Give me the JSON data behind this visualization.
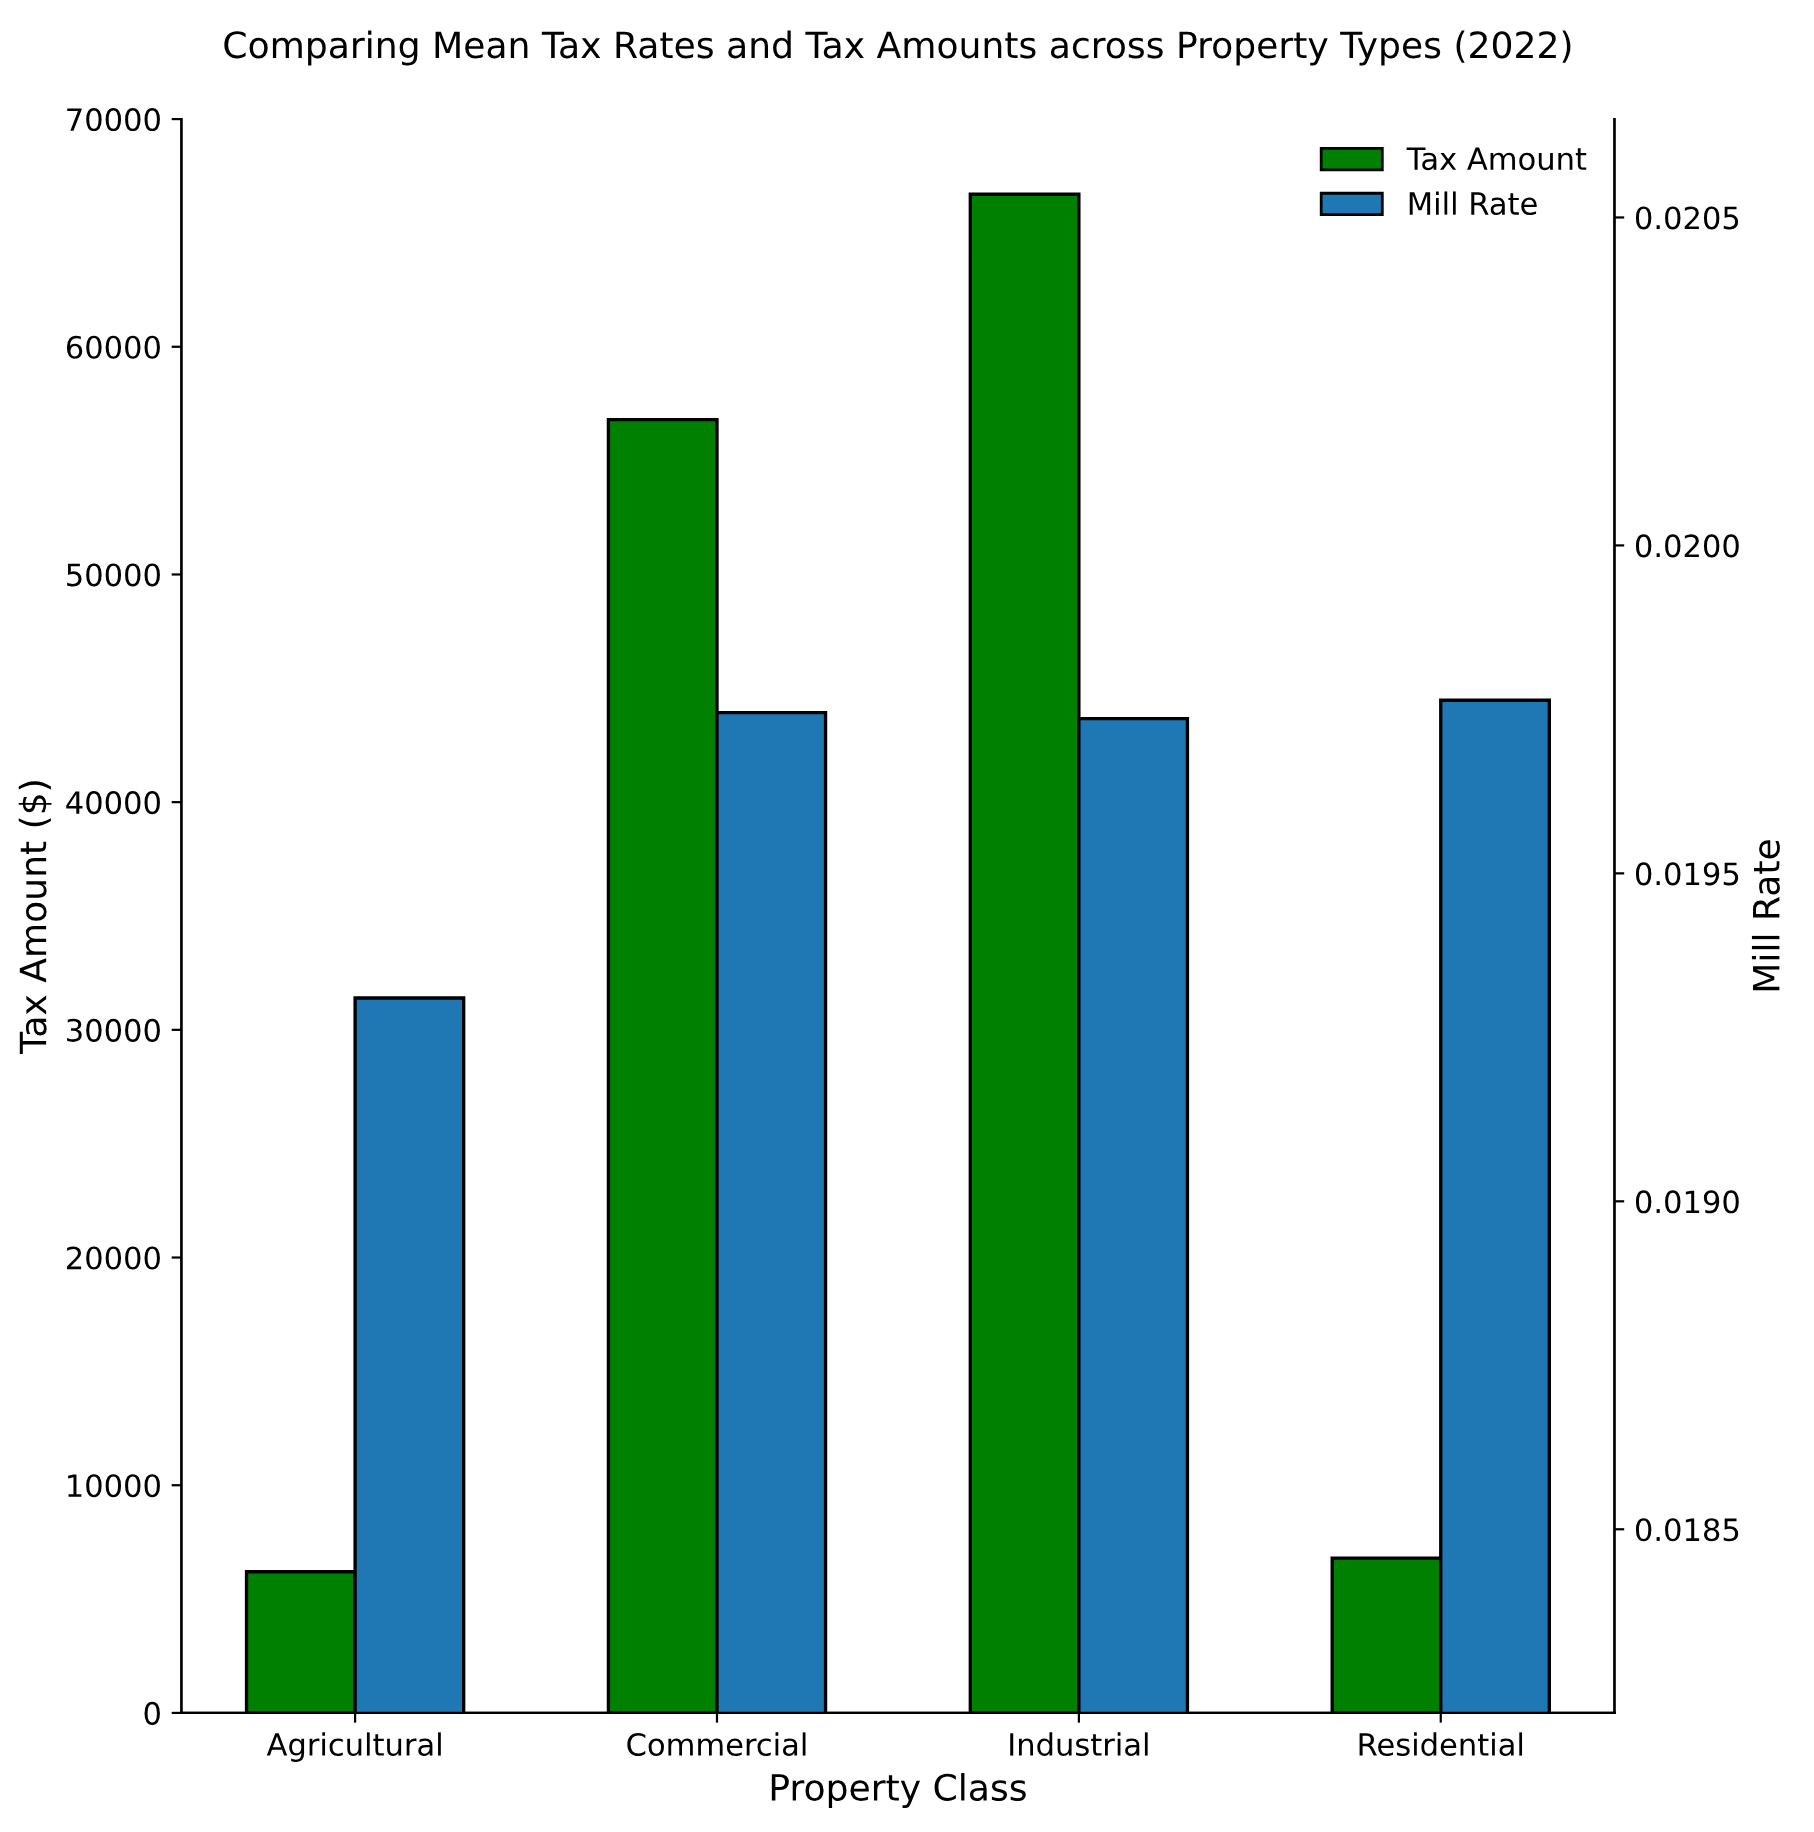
{
  "chart_data": {
    "type": "bar",
    "title": "Comparing Mean Tax Rates and Tax Amounts across Property Types (2022)",
    "xlabel": "Property Class",
    "ylabel": "Tax Amount ($)",
    "y2label": "Mill Rate",
    "categories": [
      "Agricultural",
      "Commercial",
      "Industrial",
      "Residential"
    ],
    "series": [
      {
        "name": "Tax Amount",
        "color": "#008000",
        "values": [
          6200,
          56800,
          66700,
          6800
        ]
      },
      {
        "name": "Mill Rate",
        "color": "#1f77b4",
        "axis": "y2",
        "values": [
          0.01931,
          0.019745,
          0.019736,
          0.019764
        ]
      }
    ],
    "ylim": [
      0,
      70000
    ],
    "yticks": [
      0,
      10000,
      20000,
      30000,
      40000,
      50000,
      60000,
      70000
    ],
    "y2lim": [
      0.01822,
      0.02065
    ],
    "y2ticks": [
      {
        "value": 0.0185,
        "label": "0.0185"
      },
      {
        "value": 0.019,
        "label": "0.0190"
      },
      {
        "value": 0.0195,
        "label": "0.0195"
      },
      {
        "value": 0.02,
        "label": "0.0200"
      },
      {
        "value": 0.0205,
        "label": "0.0205"
      }
    ],
    "legend": "top right",
    "grid": false
  }
}
